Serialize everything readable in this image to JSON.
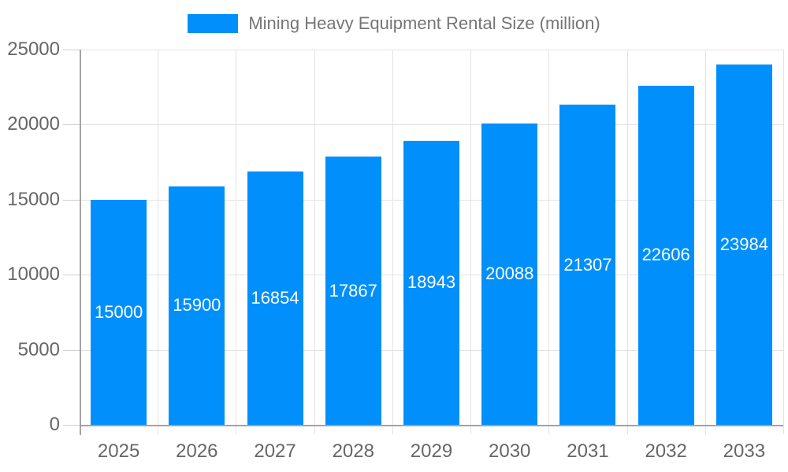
{
  "chart_data": {
    "type": "bar",
    "title": "Mining Heavy Equipment Rental Size (million)",
    "categories": [
      "2025",
      "2026",
      "2027",
      "2028",
      "2029",
      "2030",
      "2031",
      "2032",
      "2033"
    ],
    "series": [
      {
        "name": "Mining Heavy Equipment Rental Size (million)",
        "values": [
          15000,
          15900,
          16854,
          17867,
          18943,
          20088,
          21307,
          22606,
          23984
        ]
      }
    ],
    "xlabel": "",
    "ylabel": "",
    "ylim": [
      0,
      25000
    ],
    "y_ticks": [
      0,
      5000,
      10000,
      15000,
      20000,
      25000
    ],
    "grid": true,
    "data_labels": true,
    "legend_position": "top-center",
    "colors": {
      "bar": "#008FFB",
      "value_label": "#FFFFFF",
      "grid_line": "#E3E3E3",
      "tick_line": "#CFCFCF",
      "axis_line": "#A3A3A3",
      "tick_label": "#666666",
      "legend_text": "#757575",
      "background": "#FFFFFF"
    }
  }
}
